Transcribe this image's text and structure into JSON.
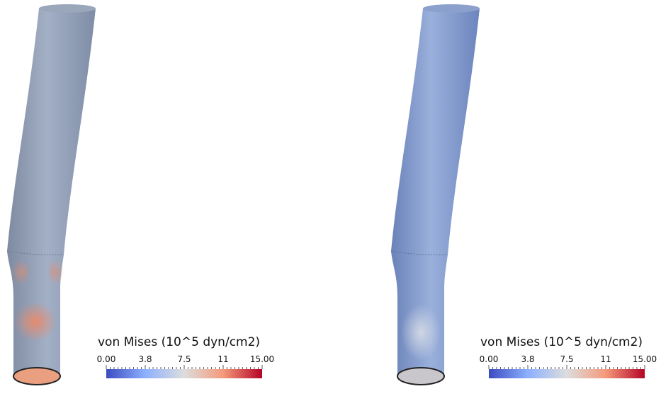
{
  "panels": [
    {
      "legend": {
        "title": "von Mises  (10^5 dyn/cm2)",
        "ticks": [
          "0.00",
          "3.8",
          "7.5",
          "11",
          "15.00"
        ]
      }
    },
    {
      "legend": {
        "title": "von Mises  (10^5 dyn/cm2)",
        "ticks": [
          "0.00",
          "3.8",
          "7.5",
          "11",
          "15.00"
        ]
      }
    }
  ]
}
